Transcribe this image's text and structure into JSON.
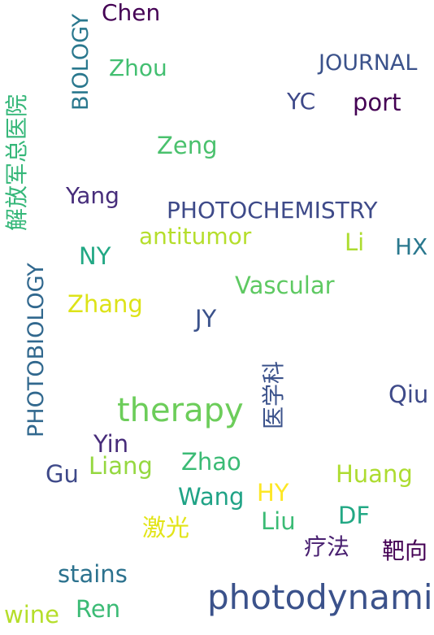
{
  "words": {
    "chen": {
      "text": "Chen",
      "color": "#440154"
    },
    "biology": {
      "text": "BIOLOGY",
      "color": "#2a788e"
    },
    "zhou": {
      "text": "Zhou",
      "color": "#43bf71"
    },
    "journal": {
      "text": "JOURNAL",
      "color": "#3b528b"
    },
    "yc": {
      "text": "YC",
      "color": "#3e4989"
    },
    "port": {
      "text": "port",
      "color": "#440154"
    },
    "hospital": {
      "text": "解放军总医院",
      "color": "#35b779"
    },
    "zeng": {
      "text": "Zeng",
      "color": "#4ac16d"
    },
    "yang": {
      "text": "Yang",
      "color": "#472d7b"
    },
    "photochemistry": {
      "text": "PHOTOCHEMISTRY",
      "color": "#3e4a89"
    },
    "antitumor": {
      "text": "antitumor",
      "color": "#b5de2b"
    },
    "li": {
      "text": "Li",
      "color": "#addc30"
    },
    "hx": {
      "text": "HX",
      "color": "#2a788e"
    },
    "photobiology": {
      "text": "PHOTOBIOLOGY",
      "color": "#31688e"
    },
    "ny": {
      "text": "NY",
      "color": "#22a884"
    },
    "vascular": {
      "text": "Vascular",
      "color": "#5ec962"
    },
    "zhang": {
      "text": "Zhang",
      "color": "#dde318"
    },
    "jy": {
      "text": "JY",
      "color": "#3b528b"
    },
    "medicine": {
      "text": "医学科",
      "color": "#3b528b"
    },
    "qiu": {
      "text": "Qiu",
      "color": "#3e4a89"
    },
    "therapy": {
      "text": "therapy",
      "color": "#6ccd5a"
    },
    "yin": {
      "text": "Yin",
      "color": "#472c7a"
    },
    "gu": {
      "text": "Gu",
      "color": "#3e4989"
    },
    "liang": {
      "text": "Liang",
      "color": "#95d840"
    },
    "zhao": {
      "text": "Zhao",
      "color": "#3bbb75"
    },
    "huang": {
      "text": "Huang",
      "color": "#addc30"
    },
    "hy": {
      "text": "HY",
      "color": "#fde725"
    },
    "wang": {
      "text": "Wang",
      "color": "#20a386"
    },
    "laser": {
      "text": "激光",
      "color": "#e2e418"
    },
    "liu": {
      "text": "Liu",
      "color": "#3bbb75"
    },
    "df": {
      "text": "DF",
      "color": "#22a884"
    },
    "therapy_cn": {
      "text": "疗法",
      "color": "#481f70"
    },
    "target": {
      "text": "靶向",
      "color": "#440154"
    },
    "stains": {
      "text": "stains",
      "color": "#2c728e"
    },
    "photodynamic": {
      "text": "photodynamic",
      "color": "#3b528b"
    },
    "ren": {
      "text": "Ren",
      "color": "#3bbb75"
    },
    "wine": {
      "text": "wine",
      "color": "#b5de2b"
    }
  }
}
